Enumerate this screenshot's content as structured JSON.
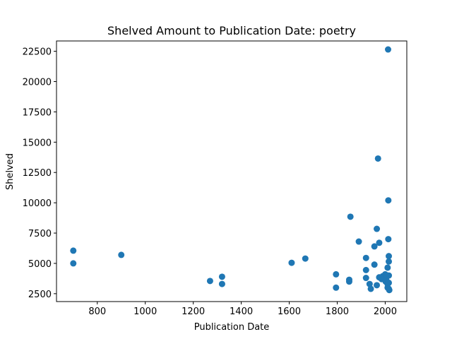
{
  "chart_data": {
    "type": "scatter",
    "title": "Shelved Amount to Publication Date: poetry",
    "xlabel": "Publication Date",
    "ylabel": "Shelved",
    "xlim": [
      630,
      2090
    ],
    "ylim": [
      1850,
      23350
    ],
    "xticks": [
      800,
      1000,
      1200,
      1400,
      1600,
      1800,
      2000
    ],
    "yticks": [
      2500,
      5000,
      7500,
      10000,
      12500,
      15000,
      17500,
      20000,
      22500
    ],
    "grid": false,
    "marker_color": "#1f77b4",
    "points": [
      {
        "x": 700,
        "y": 6050
      },
      {
        "x": 700,
        "y": 5000
      },
      {
        "x": 900,
        "y": 5700
      },
      {
        "x": 1270,
        "y": 3550
      },
      {
        "x": 1320,
        "y": 3900
      },
      {
        "x": 1320,
        "y": 3300
      },
      {
        "x": 1610,
        "y": 5050
      },
      {
        "x": 1667,
        "y": 5400
      },
      {
        "x": 1795,
        "y": 4100
      },
      {
        "x": 1795,
        "y": 3000
      },
      {
        "x": 1850,
        "y": 3650
      },
      {
        "x": 1850,
        "y": 3500
      },
      {
        "x": 1855,
        "y": 8850
      },
      {
        "x": 1890,
        "y": 6800
      },
      {
        "x": 1920,
        "y": 5450
      },
      {
        "x": 1920,
        "y": 4450
      },
      {
        "x": 1920,
        "y": 3800
      },
      {
        "x": 1935,
        "y": 3300
      },
      {
        "x": 1940,
        "y": 2900
      },
      {
        "x": 1955,
        "y": 6400
      },
      {
        "x": 1955,
        "y": 4900
      },
      {
        "x": 1965,
        "y": 7850
      },
      {
        "x": 1965,
        "y": 3200
      },
      {
        "x": 1970,
        "y": 13650
      },
      {
        "x": 1975,
        "y": 6700
      },
      {
        "x": 1975,
        "y": 3850
      },
      {
        "x": 1985,
        "y": 3700
      },
      {
        "x": 1990,
        "y": 3950
      },
      {
        "x": 1995,
        "y": 3800
      },
      {
        "x": 2000,
        "y": 4100
      },
      {
        "x": 2002,
        "y": 3500
      },
      {
        "x": 2005,
        "y": 3600
      },
      {
        "x": 2008,
        "y": 4000
      },
      {
        "x": 2010,
        "y": 4650
      },
      {
        "x": 2010,
        "y": 3300
      },
      {
        "x": 2010,
        "y": 3000
      },
      {
        "x": 2012,
        "y": 22650
      },
      {
        "x": 2013,
        "y": 10200
      },
      {
        "x": 2013,
        "y": 7000
      },
      {
        "x": 2015,
        "y": 5600
      },
      {
        "x": 2015,
        "y": 5150
      },
      {
        "x": 2015,
        "y": 4000
      },
      {
        "x": 2015,
        "y": 3400
      },
      {
        "x": 2015,
        "y": 2900
      },
      {
        "x": 2017,
        "y": 2800
      }
    ]
  }
}
